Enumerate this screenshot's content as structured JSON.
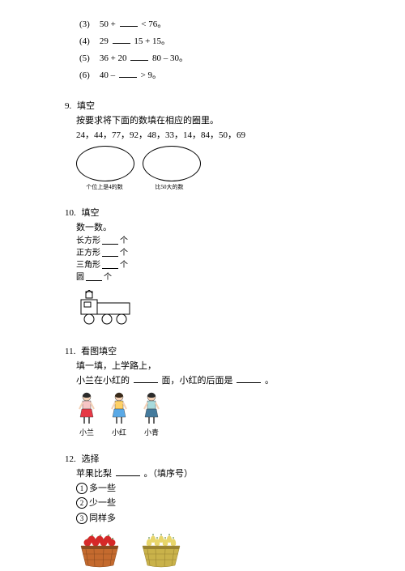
{
  "subs": [
    {
      "num": "(3)",
      "a": "50 +",
      "b": "< 76。"
    },
    {
      "num": "(4)",
      "a": "29",
      "b": "15 + 15。"
    },
    {
      "num": "(5)",
      "a": "36 + 20",
      "b": "80 – 30。"
    },
    {
      "num": "(6)",
      "a": "40 –",
      "b": "> 9。"
    }
  ],
  "p9": {
    "num": "9.",
    "title": "填空",
    "instr": "按要求将下面的数填在相应的圈里。",
    "numbers": "24，44，77，92，48，33，14，84，50，69",
    "label_left": "个位上是4的数",
    "label_right": "比50大的数"
  },
  "p10": {
    "num": "10.",
    "title": "填空",
    "sub": "数一数。",
    "shapes": [
      {
        "name": "长方形",
        "unit": "个"
      },
      {
        "name": "正方形",
        "unit": "个"
      },
      {
        "name": "三角形",
        "unit": "个"
      },
      {
        "name": "圆",
        "unit": "个"
      }
    ]
  },
  "p11": {
    "num": "11.",
    "title": "看图填空",
    "line1": "填一填，上学路上，",
    "line2a": "小兰在小红的",
    "line2b": "面，小红的后面是",
    "line2c": "。",
    "kids": [
      {
        "name": "小兰",
        "shirt": "#f7c5c5",
        "skirt": "#e63946",
        "hair": "#2b2b2b"
      },
      {
        "name": "小红",
        "shirt": "#ffd166",
        "skirt": "#5aa9e6",
        "hair": "#3a2a1a"
      },
      {
        "name": "小青",
        "shirt": "#a8dadc",
        "skirt": "#457b9d",
        "hair": "#2b2b2b"
      }
    ]
  },
  "p12": {
    "num": "12.",
    "title": "选择",
    "prompt_a": "苹果比梨",
    "prompt_b": "。（填序号）",
    "options": [
      {
        "n": "1",
        "t": "多一些"
      },
      {
        "n": "2",
        "t": "少一些"
      },
      {
        "n": "3",
        "t": "同样多"
      }
    ],
    "baskets": {
      "apple": {
        "basket": "#c46a2e",
        "weave": "#8b4a1f",
        "fruit": "#d62828",
        "leaf": "#4a7c3a"
      },
      "pear": {
        "basket": "#c9b24a",
        "weave": "#9a8430",
        "fruit": "#e8d66a",
        "leaf": "#4a7c3a"
      }
    }
  },
  "truck": {
    "stroke": "#000",
    "fill": "none"
  }
}
